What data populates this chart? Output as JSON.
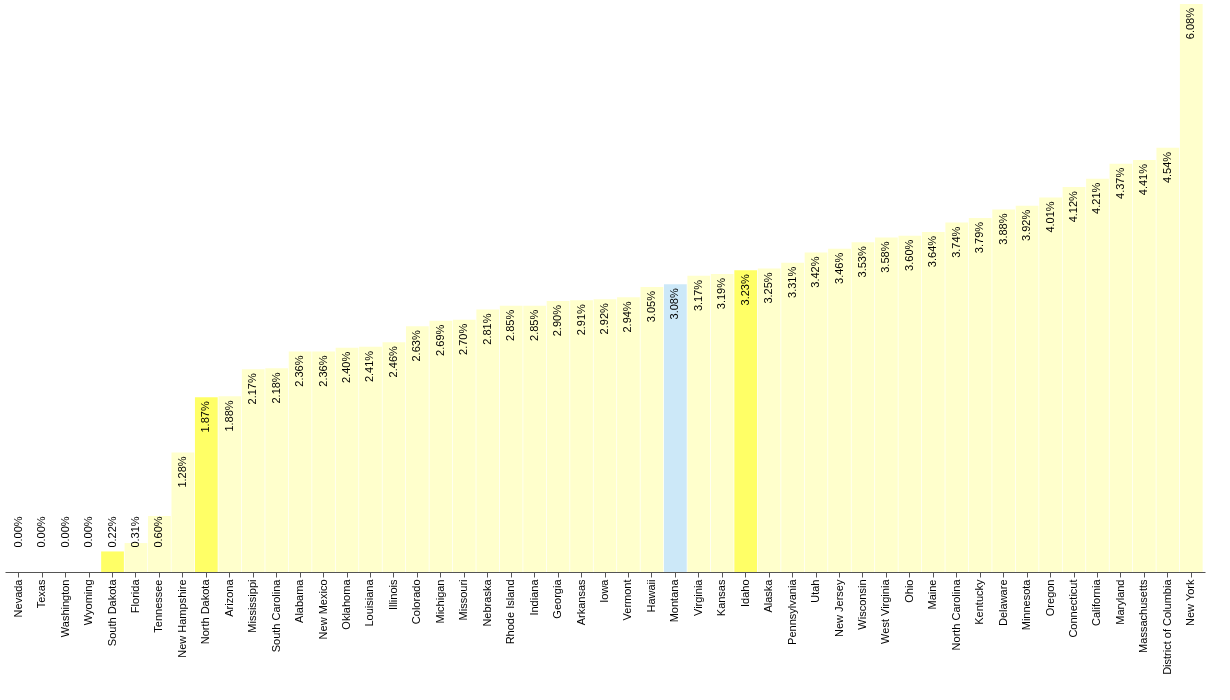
{
  "chart_data": {
    "type": "bar",
    "categories": [
      "Nevada",
      "Texas",
      "Washington",
      "Wyoming",
      "South Dakota",
      "Florida",
      "Tennessee",
      "New Hampshire",
      "North Dakota",
      "Arizona",
      "Mississippi",
      "South Carolina",
      "Alabama",
      "New Mexico",
      "Oklahoma",
      "Louisiana",
      "Illinois",
      "Colorado",
      "Michigan",
      "Missouri",
      "Nebraska",
      "Rhode Island",
      "Indiana",
      "Georgia",
      "Arkansas",
      "Iowa",
      "Vermont",
      "Hawaii",
      "Montana",
      "Virginia",
      "Kansas",
      "Idaho",
      "Alaska",
      "Pennsylvania",
      "Utah",
      "New Jersey",
      "Wisconsin",
      "West Virginia",
      "Ohio",
      "Maine",
      "North Carolina",
      "Kentucky",
      "Delaware",
      "Minnesota",
      "Oregon",
      "Connecticut",
      "California",
      "Maryland",
      "Massachusetts",
      "District of Columbia",
      "New York"
    ],
    "values": [
      0,
      0,
      0,
      0,
      0.22,
      0.31,
      0.6,
      1.28,
      1.87,
      1.88,
      2.17,
      2.18,
      2.36,
      2.36,
      2.4,
      2.41,
      2.46,
      2.63,
      2.69,
      2.7,
      2.81,
      2.85,
      2.85,
      2.9,
      2.91,
      2.92,
      2.94,
      3.05,
      3.08,
      3.17,
      3.19,
      3.23,
      3.25,
      3.31,
      3.42,
      3.46,
      3.53,
      3.58,
      3.6,
      3.64,
      3.74,
      3.79,
      3.88,
      3.92,
      4.01,
      4.12,
      4.21,
      4.37,
      4.41,
      4.54,
      6.08
    ],
    "value_labels": [
      "0.00%",
      "0.00%",
      "0.00%",
      "0.00%",
      "0.22%",
      "0.31%",
      "0.60%",
      "1.28%",
      "1.87%",
      "1.88%",
      "2.17%",
      "2.18%",
      "2.36%",
      "2.36%",
      "2.40%",
      "2.41%",
      "2.46%",
      "2.63%",
      "2.69%",
      "2.70%",
      "2.81%",
      "2.85%",
      "2.85%",
      "2.90%",
      "2.91%",
      "2.92%",
      "2.94%",
      "3.05%",
      "3.08%",
      "3.17%",
      "3.19%",
      "3.23%",
      "3.25%",
      "3.31%",
      "3.42%",
      "3.46%",
      "3.53%",
      "3.58%",
      "3.60%",
      "3.64%",
      "3.74%",
      "3.79%",
      "3.88%",
      "3.92%",
      "4.01%",
      "4.12%",
      "4.21%",
      "4.37%",
      "4.41%",
      "4.54%",
      "6.08%"
    ],
    "colors": [
      "#ffffcc",
      "#ffffcc",
      "#ffffcc",
      "#ffffcc",
      "#ffff66",
      "#ffffcc",
      "#ffffcc",
      "#ffffcc",
      "#ffff66",
      "#ffffcc",
      "#ffffcc",
      "#ffffcc",
      "#ffffcc",
      "#ffffcc",
      "#ffffcc",
      "#ffffcc",
      "#ffffcc",
      "#ffffcc",
      "#ffffcc",
      "#ffffcc",
      "#ffffcc",
      "#ffffcc",
      "#ffffcc",
      "#ffffcc",
      "#ffffcc",
      "#ffffcc",
      "#ffffcc",
      "#ffffcc",
      "#cce8f8",
      "#ffffcc",
      "#ffffcc",
      "#ffff66",
      "#ffffcc",
      "#ffffcc",
      "#ffffcc",
      "#ffffcc",
      "#ffffcc",
      "#ffffcc",
      "#ffffcc",
      "#ffffcc",
      "#ffffcc",
      "#ffffcc",
      "#ffffcc",
      "#ffffcc",
      "#ffffcc",
      "#ffffcc",
      "#ffffcc",
      "#ffffcc",
      "#ffffcc",
      "#ffffcc",
      "#ffffcc"
    ]
  }
}
